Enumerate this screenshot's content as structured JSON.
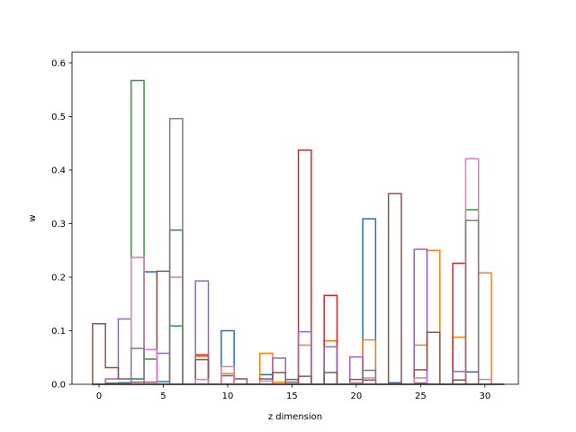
{
  "chart_data": {
    "type": "bar",
    "xlabel": "z dimension",
    "ylabel": "w",
    "xlim": [
      -2.1,
      32.6
    ],
    "ylim": [
      0,
      0.62
    ],
    "xticks": [
      0,
      5,
      10,
      15,
      20,
      25,
      30
    ],
    "yticks": [
      0.0,
      0.1,
      0.2,
      0.3,
      0.4,
      0.5,
      0.6
    ],
    "xtick_labels": [
      "0",
      "5",
      "10",
      "15",
      "20",
      "25",
      "30"
    ],
    "ytick_labels": [
      "0.0",
      "0.1",
      "0.2",
      "0.3",
      "0.4",
      "0.5",
      "0.6"
    ],
    "bar_width": 1,
    "style": "step-outline histogram, unfilled",
    "series": [
      {
        "color": "#1f77b4",
        "values": [
          0,
          0.002,
          0.003,
          0.01,
          0.21,
          0.005,
          0.288,
          0,
          0,
          0,
          0.1,
          0,
          0,
          0.018,
          0,
          0.009,
          0,
          0,
          0,
          0,
          0.001,
          0.309,
          0,
          0.003,
          0,
          0.002,
          0,
          0,
          0,
          0.023,
          0,
          0
        ]
      },
      {
        "color": "#ff7f0e",
        "values": [
          0,
          0,
          0,
          0,
          0,
          0,
          0,
          0,
          0.052,
          0,
          0.02,
          0,
          0,
          0.058,
          0.004,
          0,
          0.073,
          0,
          0.081,
          0,
          0,
          0.083,
          0,
          0,
          0,
          0.073,
          0.25,
          0,
          0.088,
          0,
          0.208,
          0
        ]
      },
      {
        "color": "#2ca02c",
        "values": [
          0,
          0,
          0,
          0.567,
          0.047,
          0,
          0.109,
          0,
          0,
          0,
          0,
          0,
          0,
          0,
          0,
          0,
          0,
          0,
          0,
          0,
          0,
          0,
          0,
          0,
          0,
          0,
          0,
          0,
          0,
          0.326,
          0,
          0
        ]
      },
      {
        "color": "#d62728",
        "values": [
          0,
          0,
          0,
          0,
          0,
          0,
          0,
          0,
          0.055,
          0,
          0,
          0,
          0,
          0,
          0,
          0,
          0.437,
          0,
          0.166,
          0,
          0,
          0,
          0,
          0,
          0,
          0,
          0,
          0,
          0.226,
          0,
          0,
          0
        ]
      },
      {
        "color": "#9467bd",
        "values": [
          0,
          0.01,
          0.122,
          0,
          0,
          0.058,
          0,
          0,
          0.193,
          0,
          0,
          0,
          0,
          0,
          0.049,
          0,
          0.098,
          0,
          0.07,
          0,
          0.051,
          0,
          0,
          0,
          0,
          0.252,
          0,
          0,
          0.024,
          0,
          0,
          0
        ]
      },
      {
        "color": "#8c564b",
        "values": [
          0.113,
          0.031,
          0.01,
          0.004,
          0.004,
          0.211,
          0,
          0,
          0.046,
          0,
          0.016,
          0.01,
          0,
          0.01,
          0.022,
          0.004,
          0.015,
          0,
          0.022,
          0,
          0.009,
          0.008,
          0,
          0.356,
          0,
          0.027,
          0.097,
          0,
          0.008,
          0,
          0,
          0
        ]
      },
      {
        "color": "#e377c2",
        "values": [
          0,
          0,
          0,
          0.237,
          0.065,
          0,
          0.2,
          0,
          0.009,
          0,
          0.033,
          0,
          0,
          0.006,
          0,
          0,
          0,
          0,
          0,
          0,
          0.003,
          0.012,
          0,
          0,
          0,
          0.012,
          0,
          0,
          0,
          0.421,
          0.009,
          0
        ]
      },
      {
        "color": "#7f7f7f",
        "values": [
          0,
          0,
          0,
          0.067,
          0,
          0,
          0.496,
          0,
          0,
          0,
          0,
          0,
          0,
          0,
          0,
          0,
          0,
          0,
          0,
          0,
          0,
          0.026,
          0,
          0,
          0,
          0,
          0,
          0,
          0,
          0.306,
          0,
          0
        ]
      }
    ]
  }
}
